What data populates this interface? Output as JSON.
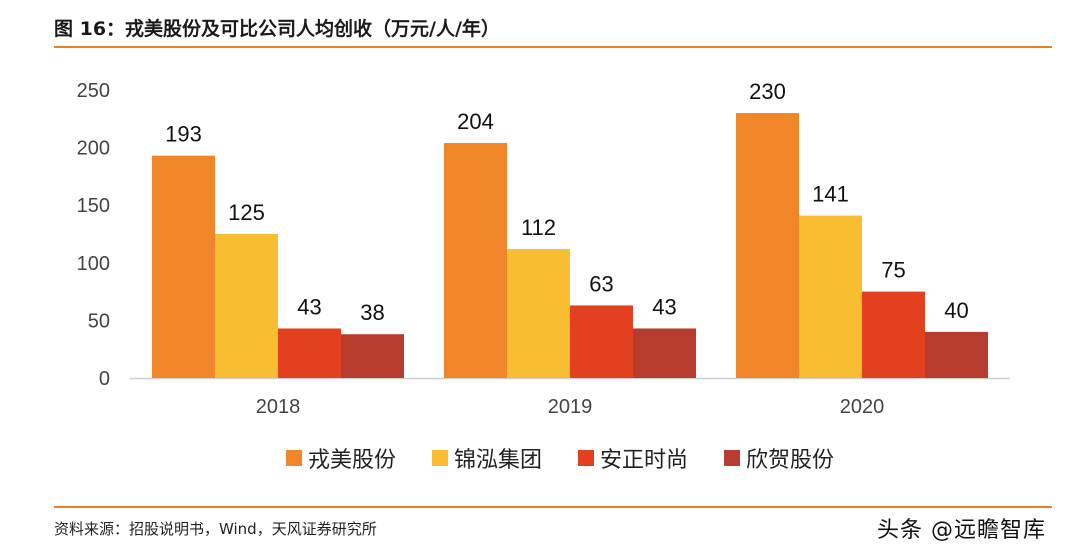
{
  "header": {
    "title": "图 16：戎美股份及可比公司人均创收（万元/人/年）"
  },
  "footer": {
    "source": "资料来源：招股说明书，Wind，天风证券研究所",
    "watermark": "头条 @远瞻智库"
  },
  "colors": {
    "accent_rule": "#e8812a",
    "series": [
      "#f0852a",
      "#f8bd30",
      "#e2401f",
      "#b83c2e"
    ]
  },
  "chart_data": {
    "type": "bar",
    "title": "戎美股份及可比公司人均创收（万元/人/年）",
    "xlabel": "",
    "ylabel": "",
    "categories": [
      "2018",
      "2019",
      "2020"
    ],
    "series": [
      {
        "name": "戎美股份",
        "values": [
          193,
          204,
          230
        ]
      },
      {
        "name": "锦泓集团",
        "values": [
          125,
          112,
          141
        ]
      },
      {
        "name": "安正时尚",
        "values": [
          43,
          63,
          75
        ]
      },
      {
        "name": "欣贺股份",
        "values": [
          38,
          43,
          40
        ]
      }
    ],
    "ylim": [
      0,
      250
    ],
    "yticks": [
      0,
      50,
      100,
      150,
      200,
      250
    ],
    "grid": false,
    "legend_position": "bottom"
  }
}
